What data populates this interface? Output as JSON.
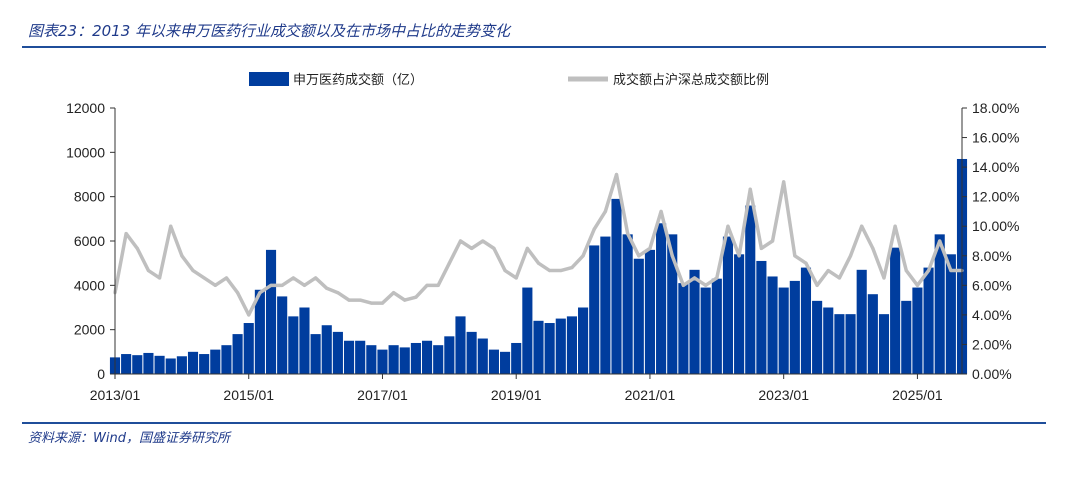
{
  "figure": {
    "title": "图表23：2013 年以来申万医药行业成交额以及在市场中占比的走势变化",
    "source": "资料来源：Wind，国盛证券研究所"
  },
  "colors": {
    "bar": "#003D9E",
    "line": "#BFBFBF",
    "accent": "#1F4E9A"
  },
  "chart_data": {
    "type": "bar",
    "title": "",
    "xlabel": "",
    "ylabel": "",
    "ylim": [
      0,
      12000
    ],
    "y2lim": [
      0,
      0.18
    ],
    "xlim": [
      "2013/01",
      "2025/09"
    ],
    "grid": false,
    "legend_position": "top",
    "x_ticks": [
      "2013/01",
      "2015/01",
      "2017/01",
      "2019/01",
      "2021/01",
      "2023/01",
      "2025/01"
    ],
    "y_ticks": [
      "0",
      "2000",
      "4000",
      "6000",
      "8000",
      "10000",
      "12000"
    ],
    "y2_ticks": [
      "0.00%",
      "2.00%",
      "4.00%",
      "6.00%",
      "8.00%",
      "10.00%",
      "12.00%",
      "14.00%",
      "16.00%",
      "18.00%"
    ],
    "x": [
      "2013/01",
      "2013/03",
      "2013/05",
      "2013/07",
      "2013/09",
      "2013/11",
      "2014/01",
      "2014/03",
      "2014/05",
      "2014/07",
      "2014/09",
      "2014/11",
      "2015/01",
      "2015/03",
      "2015/05",
      "2015/07",
      "2015/09",
      "2015/11",
      "2016/01",
      "2016/03",
      "2016/05",
      "2016/07",
      "2016/09",
      "2016/11",
      "2017/01",
      "2017/03",
      "2017/05",
      "2017/07",
      "2017/09",
      "2017/11",
      "2018/01",
      "2018/03",
      "2018/05",
      "2018/07",
      "2018/09",
      "2018/11",
      "2019/01",
      "2019/03",
      "2019/05",
      "2019/07",
      "2019/09",
      "2019/11",
      "2020/01",
      "2020/03",
      "2020/05",
      "2020/07",
      "2020/09",
      "2020/11",
      "2021/01",
      "2021/03",
      "2021/05",
      "2021/07",
      "2021/09",
      "2021/11",
      "2022/01",
      "2022/03",
      "2022/05",
      "2022/07",
      "2022/09",
      "2022/11",
      "2023/01",
      "2023/03",
      "2023/05",
      "2023/07",
      "2023/09",
      "2023/11",
      "2024/01",
      "2024/03",
      "2024/05",
      "2024/07",
      "2024/09",
      "2024/11",
      "2025/01",
      "2025/03",
      "2025/05",
      "2025/07",
      "2025/09"
    ],
    "series": [
      {
        "name": "申万医药成交额（亿）",
        "type": "bar",
        "axis": "left",
        "values": [
          750,
          900,
          850,
          950,
          820,
          700,
          800,
          1000,
          900,
          1100,
          1300,
          1800,
          2300,
          3800,
          5600,
          3500,
          2600,
          3000,
          1800,
          2200,
          1900,
          1500,
          1500,
          1300,
          1100,
          1300,
          1200,
          1400,
          1500,
          1300,
          1700,
          2600,
          1900,
          1600,
          1100,
          1000,
          1400,
          3900,
          2400,
          2300,
          2500,
          2600,
          3000,
          5800,
          6200,
          7900,
          6300,
          5200,
          5600,
          6800,
          6300,
          4100,
          4700,
          3900,
          4300,
          6200,
          5400,
          7600,
          5100,
          4400,
          3900,
          4200,
          4800,
          3300,
          3000,
          2700,
          2700,
          4700,
          3600,
          2700,
          5700,
          3300,
          3900,
          4800,
          6300,
          5400,
          9700
        ]
      },
      {
        "name": "成交额占沪深总成交额比例",
        "type": "line",
        "axis": "right",
        "values": [
          0.055,
          0.095,
          0.085,
          0.07,
          0.065,
          0.1,
          0.08,
          0.07,
          0.065,
          0.06,
          0.065,
          0.055,
          0.04,
          0.055,
          0.06,
          0.06,
          0.065,
          0.06,
          0.065,
          0.058,
          0.055,
          0.05,
          0.05,
          0.048,
          0.048,
          0.055,
          0.05,
          0.052,
          0.06,
          0.06,
          0.075,
          0.09,
          0.085,
          0.09,
          0.085,
          0.07,
          0.065,
          0.085,
          0.075,
          0.07,
          0.07,
          0.072,
          0.08,
          0.098,
          0.11,
          0.135,
          0.095,
          0.08,
          0.085,
          0.11,
          0.08,
          0.06,
          0.065,
          0.06,
          0.065,
          0.1,
          0.08,
          0.125,
          0.085,
          0.09,
          0.13,
          0.08,
          0.075,
          0.06,
          0.07,
          0.065,
          0.08,
          0.1,
          0.085,
          0.065,
          0.1,
          0.07,
          0.06,
          0.07,
          0.09,
          0.07,
          0.07
        ]
      }
    ]
  }
}
